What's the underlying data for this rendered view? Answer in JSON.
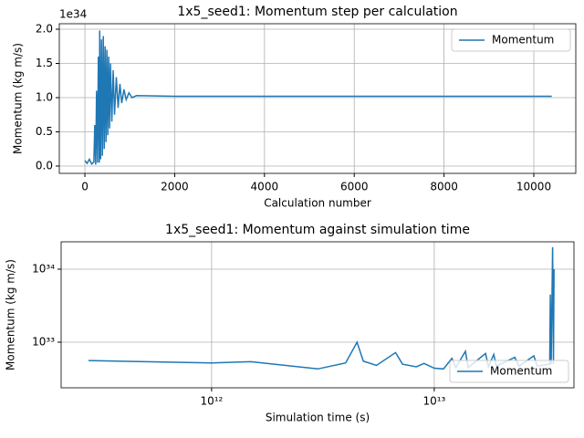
{
  "chart_data": [
    {
      "type": "line",
      "title": "1x5_seed1: Momentum step per calculation",
      "xlabel": "Calculation number",
      "ylabel": "Momentum (kg m/s)",
      "y_offset_label": "1e34",
      "xlim": [
        -570,
        10935
      ],
      "ylim": [
        -0.107,
        2.08
      ],
      "xticks": [
        0,
        2000,
        4000,
        6000,
        8000,
        10000
      ],
      "yticks": [
        {
          "value": 0,
          "label": "0.0"
        },
        {
          "value": 0.5,
          "label": "0.5"
        },
        {
          "value": 1,
          "label": "1.0"
        },
        {
          "value": 1.5,
          "label": "1.5"
        },
        {
          "value": 2,
          "label": "2.0"
        }
      ],
      "grid": true,
      "legend": "upper-right",
      "x": [
        0,
        50,
        100,
        150,
        200,
        220,
        240,
        260,
        280,
        300,
        320,
        330,
        350,
        370,
        390,
        410,
        430,
        450,
        470,
        490,
        510,
        530,
        550,
        570,
        600,
        630,
        660,
        700,
        740,
        780,
        820,
        870,
        920,
        980,
        1050,
        1150,
        2000,
        10400
      ],
      "series": [
        {
          "name": "Momentum",
          "color": "#1f77b4",
          "values": [
            0.08,
            0.04,
            0.1,
            0.03,
            0.06,
            0.6,
            0.02,
            1.1,
            0.05,
            1.6,
            0.05,
            1.98,
            0.1,
            1.85,
            0.15,
            1.9,
            0.25,
            1.75,
            0.35,
            1.7,
            0.45,
            1.6,
            0.55,
            1.5,
            0.65,
            1.4,
            0.75,
            1.3,
            0.85,
            1.2,
            0.92,
            1.12,
            0.97,
            1.07,
            1.0,
            1.03,
            1.02,
            1.02
          ]
        }
      ]
    },
    {
      "type": "line",
      "title": "1x5_seed1: Momentum against simulation time",
      "xlabel": "Simulation time (s)",
      "ylabel": "Momentum (kg m/s)",
      "xscale": "log",
      "yscale": "log",
      "xlim": [
        211000000000.0,
        42400000000000.0
      ],
      "ylim": [
        2.37e+32,
        2.37e+34
      ],
      "xticks": [
        {
          "value": 1000000000000.0,
          "label": "10¹²"
        },
        {
          "value": 10000000000000.0,
          "label": "10¹³"
        }
      ],
      "yticks": [
        {
          "value": 1e+33,
          "label": "10³³"
        },
        {
          "value": 1e+34,
          "label": "10³⁴"
        }
      ],
      "grid": true,
      "legend": "lower-right",
      "x": [
        280000000000.0,
        1000000000000.0,
        1500000000000.0,
        3000000000000.0,
        4000000000000.0,
        4500000000000.0,
        4800000000000.0,
        5500000000000.0,
        6700000000000.0,
        7200000000000.0,
        8300000000000.0,
        9000000000000.0,
        10000000000000.0,
        11000000000000.0,
        12000000000000.0,
        12500000000000.0,
        13800000000000.0,
        14200000000000.0,
        17000000000000.0,
        17500000000000.0,
        18500000000000.0,
        19000000000000.0,
        23000000000000.0,
        24000000000000.0,
        28000000000000.0,
        29000000000000.0,
        33000000000000.0,
        33200000000000.0,
        33500000000000.0,
        34000000000000.0,
        34300000000000.0,
        34500000000000.0
      ],
      "series": [
        {
          "name": "Momentum",
          "color": "#1f77b4",
          "values": [
            5.6e+32,
            5.2e+32,
            5.4e+32,
            4.3e+32,
            5.2e+32,
            1e+33,
            5.5e+32,
            4.8e+32,
            7.2e+32,
            5e+32,
            4.6e+32,
            5.1e+32,
            4.4e+32,
            4.3e+32,
            6e+32,
            4.5e+32,
            7.5e+32,
            4.5e+32,
            7e+32,
            4.6e+32,
            6.8e+32,
            4.7e+32,
            6.2e+32,
            4.7e+32,
            6.5e+32,
            4.7e+32,
            5e+32,
            4.5e+33,
            5e+32,
            2e+34,
            5e+32,
            1e+34
          ]
        }
      ]
    }
  ]
}
